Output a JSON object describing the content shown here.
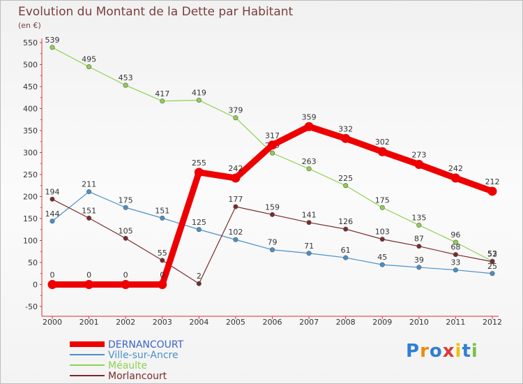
{
  "chart_data": {
    "type": "line",
    "title": "Evolution du Montant de la Dette par Habitant",
    "subtitle": "(en €)",
    "x": [
      "2000",
      "2001",
      "2002",
      "2003",
      "2004",
      "2005",
      "2006",
      "2007",
      "2008",
      "2009",
      "2010",
      "2011",
      "2012"
    ],
    "ylim": [
      -50,
      550
    ],
    "yticks": [
      -50,
      0,
      50,
      100,
      150,
      200,
      250,
      300,
      350,
      400,
      450,
      500,
      550
    ],
    "grid": false,
    "legend_position": "bottom-left",
    "series": [
      {
        "name": "DERNANCOURT",
        "color": "#ee0000",
        "values": [
          0,
          0,
          0,
          0,
          255,
          242,
          317,
          359,
          332,
          302,
          273,
          242,
          212
        ]
      },
      {
        "name": "Ville-sur-Ancre",
        "color": "#4a90c8",
        "values": [
          144,
          211,
          175,
          151,
          125,
          102,
          79,
          71,
          61,
          45,
          39,
          33,
          25
        ]
      },
      {
        "name": "Méaulte",
        "color": "#8fd14f",
        "values": [
          539,
          495,
          453,
          417,
          419,
          379,
          299,
          263,
          225,
          175,
          135,
          96,
          53
        ]
      },
      {
        "name": "Morlancourt",
        "color": "#7a2a2a",
        "values": [
          194,
          151,
          105,
          55,
          2,
          177,
          159,
          141,
          126,
          103,
          87,
          68,
          52
        ]
      }
    ]
  },
  "logo": {
    "letters": [
      "P",
      "r",
      "o",
      "x",
      "i",
      "t",
      "i"
    ],
    "colors": [
      "#2e7fd6",
      "#f08a00",
      "#2e7fd6",
      "#d93a3a",
      "#f0c000",
      "#2e7fd6",
      "#7cc242"
    ]
  }
}
